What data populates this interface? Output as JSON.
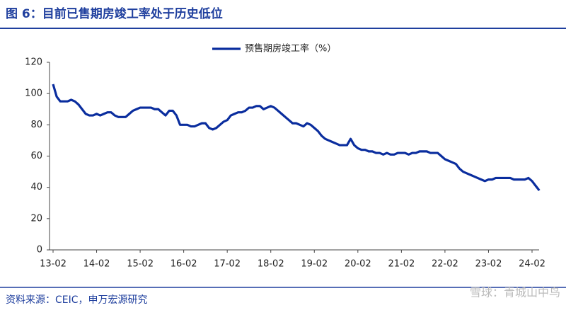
{
  "chart_data": {
    "type": "line",
    "title": "图 6：目前已售期房竣工率处于历史低位",
    "source": "资料来源：CEIC，申万宏源研究",
    "watermark": "雪球：青城山中鸟",
    "categories": [
      "13-02",
      null,
      null,
      null,
      null,
      null,
      null,
      null,
      null,
      null,
      null,
      null,
      "14-02",
      null,
      null,
      null,
      null,
      null,
      null,
      null,
      null,
      null,
      null,
      null,
      "15-02",
      null,
      null,
      null,
      null,
      null,
      null,
      null,
      null,
      null,
      null,
      null,
      "16-02",
      null,
      null,
      null,
      null,
      null,
      null,
      null,
      null,
      null,
      null,
      null,
      "17-02",
      null,
      null,
      null,
      null,
      null,
      null,
      null,
      null,
      null,
      null,
      null,
      "18-02",
      null,
      null,
      null,
      null,
      null,
      null,
      null,
      null,
      null,
      null,
      null,
      "19-02",
      null,
      null,
      null,
      null,
      null,
      null,
      null,
      null,
      null,
      null,
      null,
      "20-02",
      null,
      null,
      null,
      null,
      null,
      null,
      null,
      null,
      null,
      null,
      null,
      "21-02",
      null,
      null,
      null,
      null,
      null,
      null,
      null,
      null,
      null,
      null,
      null,
      "22-02",
      null,
      null,
      null,
      null,
      null,
      null,
      null,
      null,
      null,
      null,
      null,
      "23-02",
      null,
      null,
      null,
      null,
      null,
      null,
      null,
      null,
      null,
      null,
      null,
      "24-02",
      null,
      null
    ],
    "series": [
      {
        "name": "预售期房竣工率（%）",
        "color": "#0a2d9e",
        "values": [
          106,
          98,
          95,
          95,
          95,
          96,
          95,
          93,
          90,
          87,
          86,
          86,
          87,
          86,
          87,
          88,
          88,
          86,
          85,
          85,
          85,
          87,
          89,
          90,
          91,
          91,
          91,
          91,
          90,
          90,
          88,
          86,
          89,
          89,
          86,
          80,
          80,
          80,
          79,
          79,
          80,
          81,
          81,
          78,
          77,
          78,
          80,
          82,
          83,
          86,
          87,
          88,
          88,
          89,
          91,
          91,
          92,
          92,
          90,
          91,
          92,
          91,
          89,
          87,
          85,
          83,
          81,
          81,
          80,
          79,
          81,
          80,
          78,
          76,
          73,
          71,
          70,
          69,
          68,
          67,
          67,
          67,
          71,
          67,
          65,
          64,
          64,
          63,
          63,
          62,
          62,
          61,
          62,
          61,
          61,
          62,
          62,
          62,
          61,
          62,
          62,
          63,
          63,
          63,
          62,
          62,
          62,
          60,
          58,
          57,
          56,
          55,
          52,
          50,
          49,
          48,
          47,
          46,
          45,
          44,
          45,
          45,
          46,
          46,
          46,
          46,
          46,
          45,
          45,
          45,
          45,
          46,
          44,
          41,
          38
        ]
      }
    ],
    "ylim": [
      0,
      120
    ],
    "yticks": [
      0,
      20,
      40,
      60,
      80,
      100,
      120
    ],
    "grid": false,
    "legend": "top"
  }
}
